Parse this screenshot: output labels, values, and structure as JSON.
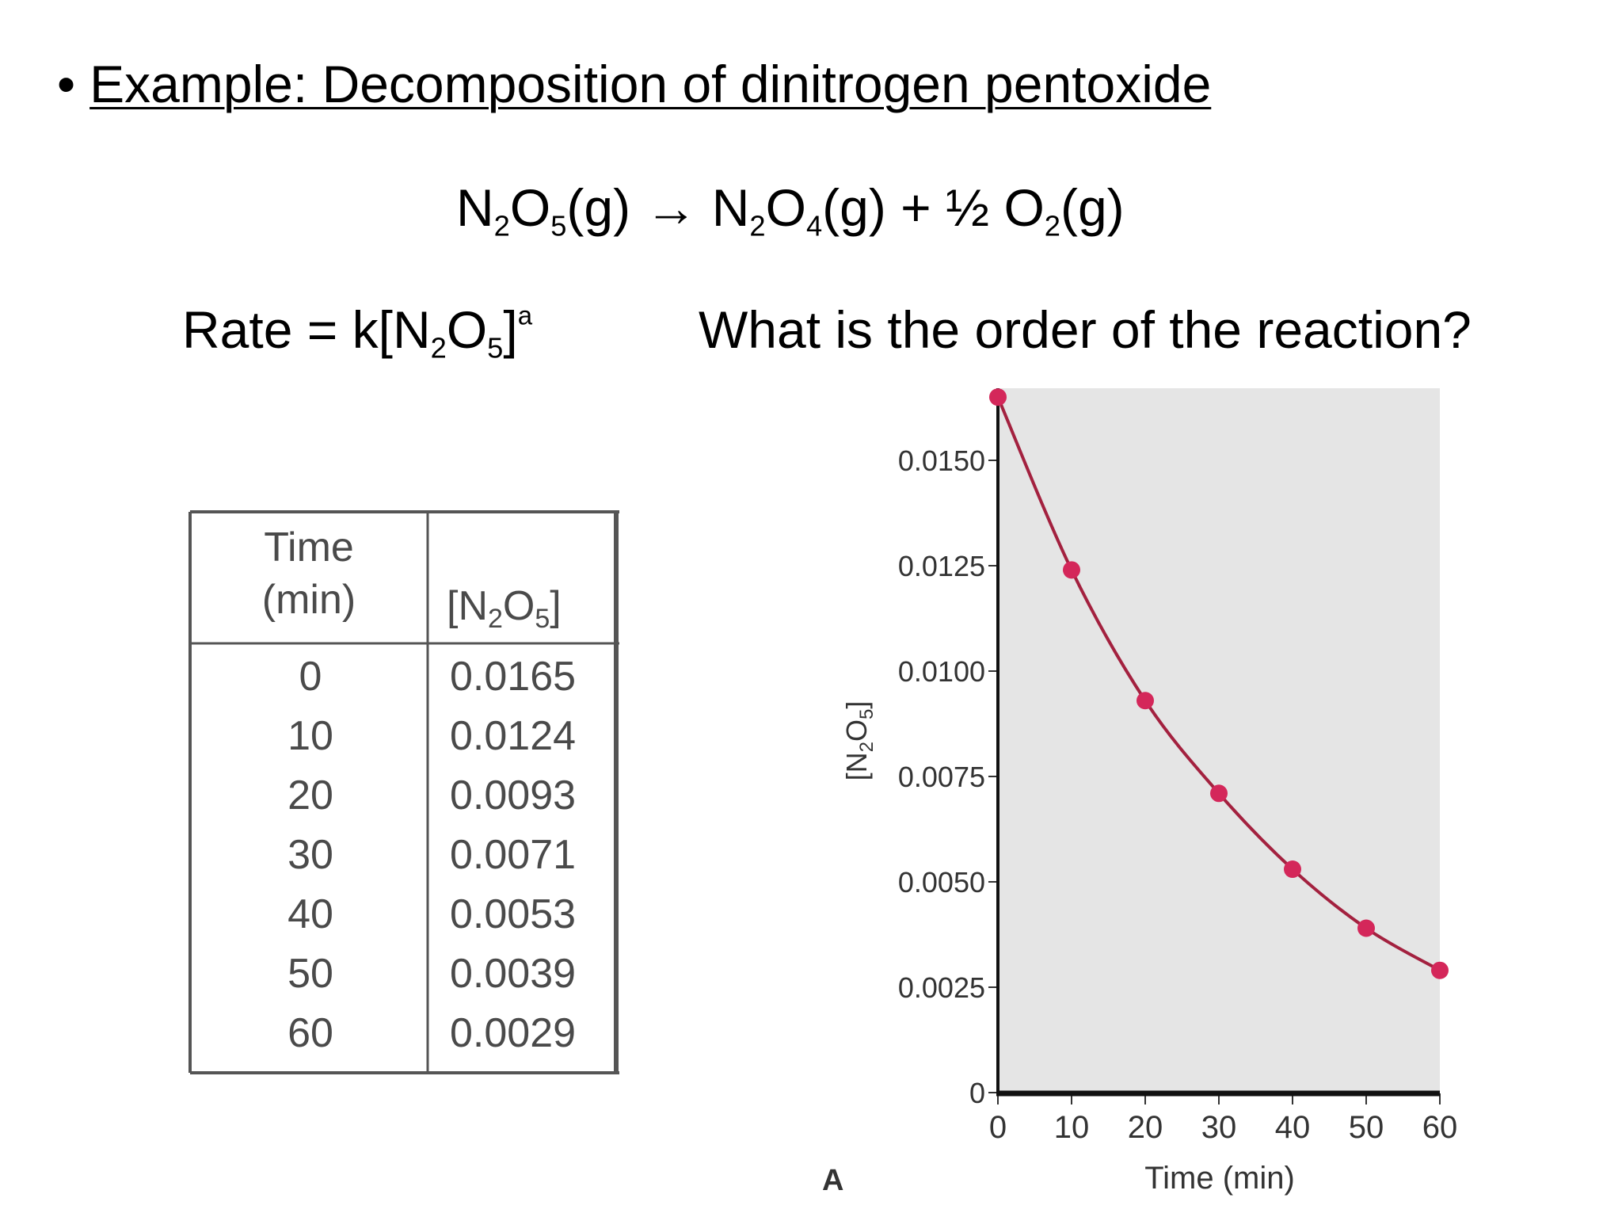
{
  "slide": {
    "bullet": "•",
    "heading": "Example: Decomposition of dinitrogen pentoxide",
    "equation": {
      "reactant": {
        "n": "N",
        "n_sub": "2",
        "o": "O",
        "o_sub": "5",
        "state": "(g)"
      },
      "arrow": "→",
      "product1": {
        "n": "N",
        "n_sub": "2",
        "o": "O",
        "o_sub": "4",
        "state": "(g)"
      },
      "plus": "+",
      "product2": {
        "coef": "½",
        "o": "O",
        "o_sub": "2",
        "state": "(g)"
      }
    },
    "rate_law": {
      "prefix": "Rate = k[N",
      "n_sub": "2",
      "o": "O",
      "o_sub": "5",
      "close": "]",
      "exp": "a"
    },
    "question": "What is the order of the reaction?"
  },
  "table": {
    "header_time_line1": "Time",
    "header_time_line2": "(min)",
    "header_conc": {
      "open": "[N",
      "n_sub": "2",
      "o": "O",
      "o_sub": "5",
      "close": "]"
    },
    "rows": [
      {
        "time": "0",
        "conc": "0.0165"
      },
      {
        "time": "10",
        "conc": "0.0124"
      },
      {
        "time": "20",
        "conc": "0.0093"
      },
      {
        "time": "30",
        "conc": "0.0071"
      },
      {
        "time": "40",
        "conc": "0.0053"
      },
      {
        "time": "50",
        "conc": "0.0039"
      },
      {
        "time": "60",
        "conc": "0.0029"
      }
    ]
  },
  "chart_data": {
    "type": "line",
    "x": [
      0,
      10,
      20,
      30,
      40,
      50,
      60
    ],
    "series": [
      {
        "values": [
          0.0165,
          0.0124,
          0.0093,
          0.0071,
          0.0053,
          0.0039,
          0.0029
        ]
      }
    ],
    "xlabel": "Time (min)",
    "ylabel": {
      "open": "[N",
      "n_sub": "2",
      "o": "O",
      "o_sub": "5",
      "close": "]"
    },
    "panel_label": "A",
    "xlim": [
      0,
      60
    ],
    "ylim": [
      0,
      0.0165
    ],
    "xticks": [
      0,
      10,
      20,
      30,
      40,
      50,
      60
    ],
    "yticks": [
      0,
      0.0025,
      0.005,
      0.0075,
      0.01,
      0.0125,
      0.015
    ],
    "ytick_labels": [
      "0",
      "0.0025",
      "0.0050",
      "0.0075",
      "0.0100",
      "0.0125",
      "0.0150"
    ],
    "grid": false,
    "colors": {
      "line": "#a3213f",
      "marker": "#d4275a",
      "plot_bg": "#e5e5e5"
    }
  }
}
